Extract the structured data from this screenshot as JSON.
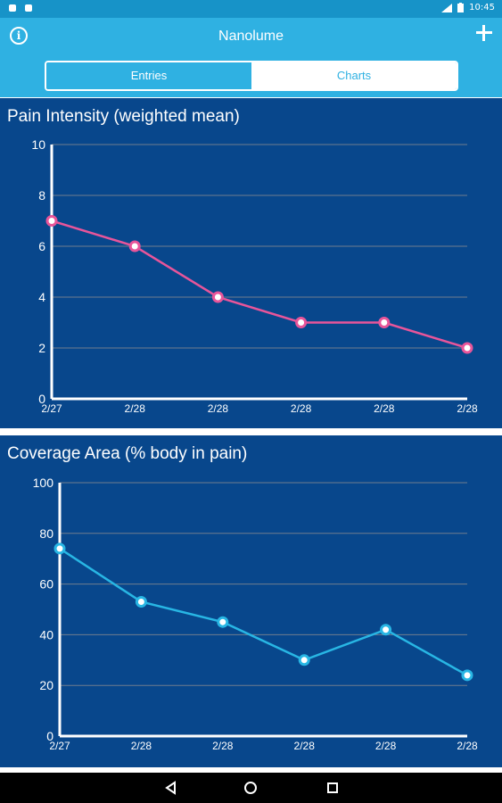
{
  "status": {
    "time": "10:45"
  },
  "app": {
    "title": "Nanolume"
  },
  "tabs": [
    {
      "label": "Entries"
    },
    {
      "label": "Charts"
    }
  ],
  "colors": {
    "accent": "#2fb1e2",
    "panel": "#08478c",
    "pain_series": "#e8559a",
    "coverage_series": "#28b6e4"
  },
  "icons": {
    "info": "info-icon",
    "add": "plus-icon",
    "back": "back-triangle-icon",
    "home": "home-circle-icon",
    "recents": "recents-square-icon"
  },
  "chart_data": [
    {
      "type": "line",
      "title": "Pain Intensity (weighted mean)",
      "categories": [
        "2/27",
        "2/28",
        "2/28",
        "2/28",
        "2/28",
        "2/28"
      ],
      "series": [
        {
          "values": [
            7,
            6,
            4,
            3,
            3,
            2
          ]
        }
      ],
      "ylim": [
        0,
        10
      ],
      "yticks": [
        0,
        2,
        4,
        6,
        8,
        10
      ],
      "grid": true
    },
    {
      "type": "line",
      "title": "Coverage Area (% body in pain)",
      "categories": [
        "2/27",
        "2/28",
        "2/28",
        "2/28",
        "2/28",
        "2/28"
      ],
      "series": [
        {
          "values": [
            74,
            53,
            45,
            30,
            42,
            24
          ]
        }
      ],
      "ylim": [
        0,
        100
      ],
      "yticks": [
        0,
        20,
        40,
        60,
        80,
        100
      ],
      "grid": true
    }
  ]
}
